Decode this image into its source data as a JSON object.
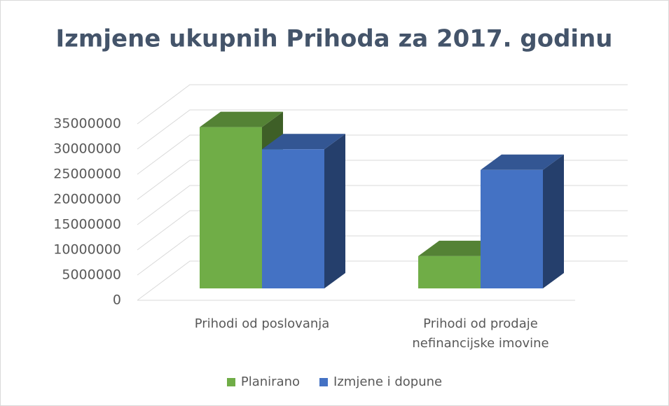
{
  "chart_data": {
    "type": "bar3d",
    "title": "Izmjene ukupnih Prihoda za 2017. godinu",
    "categories": [
      "Prihodi od poslovanja",
      "Prihodi od prodaje nefinancijske imovine"
    ],
    "series": [
      {
        "name": "Planirano",
        "color": "#70ad47",
        "values": [
          32000000,
          6400000
        ]
      },
      {
        "name": "Izmjene i dopune",
        "color": "#4472c4",
        "values": [
          27600000,
          23500000
        ]
      }
    ],
    "ylim": [
      0,
      35000000
    ],
    "yticks": [
      0,
      5000000,
      10000000,
      15000000,
      20000000,
      25000000,
      30000000,
      35000000
    ],
    "grid": true,
    "legend": "bottom"
  }
}
